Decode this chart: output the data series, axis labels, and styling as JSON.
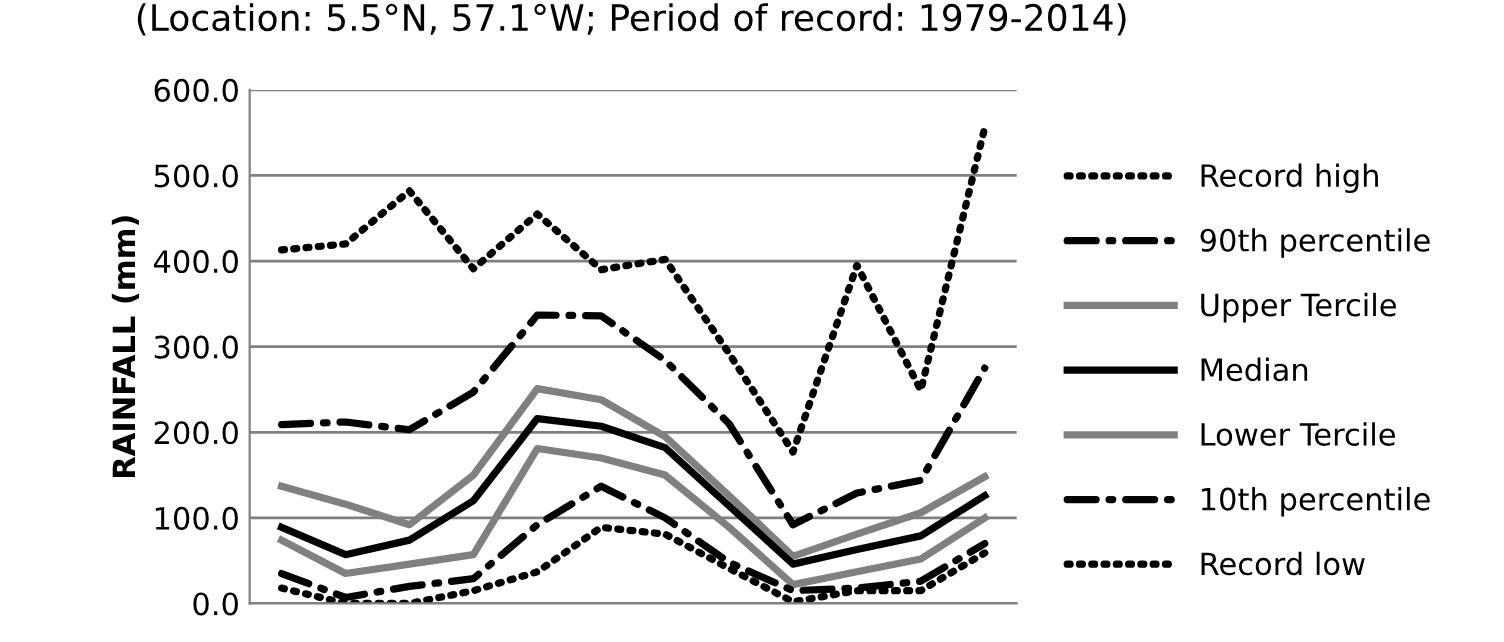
{
  "chart_data": {
    "type": "line",
    "title": "(Location: 5.5°N, 57.1°W; Period of record: 1979-2014)",
    "ylabel": "RAINFALL (mm)",
    "categories": [
      null,
      null,
      null,
      null,
      null,
      null,
      null,
      null,
      null,
      null,
      null,
      null
    ],
    "series": [
      {
        "name": "Record high",
        "color": "#000000",
        "line_style": "dotted",
        "values": [
          413,
          420,
          482,
          391,
          455,
          390,
          402,
          292,
          177,
          395,
          249,
          556
        ]
      },
      {
        "name": "90th percentile",
        "color": "#000000",
        "line_style": "dashdot",
        "values": [
          209,
          212,
          203,
          247,
          337,
          336,
          284,
          210,
          92,
          129,
          144,
          275
        ]
      },
      {
        "name": "Upper Tercile",
        "color": "#808080",
        "line_style": "solid",
        "values": [
          137,
          116,
          92,
          150,
          251,
          238,
          195,
          126,
          55,
          81,
          106,
          148
        ]
      },
      {
        "name": "Median",
        "color": "#000000",
        "line_style": "solid",
        "values": [
          89,
          57,
          74,
          120,
          216,
          207,
          182,
          114,
          46,
          63,
          79,
          126
        ]
      },
      {
        "name": "Lower Tercile",
        "color": "#808080",
        "line_style": "solid",
        "values": [
          74,
          35,
          46,
          57,
          181,
          170,
          150,
          89,
          22,
          37,
          52,
          100
        ]
      },
      {
        "name": "10th percentile",
        "color": "#000000",
        "line_style": "dashdot",
        "values": [
          35,
          7,
          20,
          29,
          92,
          137,
          100,
          48,
          15,
          18,
          26,
          70
        ]
      },
      {
        "name": "Record low",
        "color": "#000000",
        "line_style": "dotted",
        "values": [
          18,
          0,
          0,
          15,
          37,
          89,
          81,
          41,
          2,
          15,
          15,
          59
        ]
      }
    ],
    "ylim": [
      0,
      600
    ],
    "yticks": [
      {
        "value": 0,
        "label": "0.0"
      },
      {
        "value": 100,
        "label": "100.0"
      },
      {
        "value": 200,
        "label": "200.0"
      },
      {
        "value": 300,
        "label": "300.0"
      },
      {
        "value": 400,
        "label": "400.0"
      },
      {
        "value": 500,
        "label": "500.0"
      },
      {
        "value": 600,
        "label": "600.0"
      }
    ],
    "grid": "y",
    "legend": "right",
    "tick_labels": "y"
  }
}
